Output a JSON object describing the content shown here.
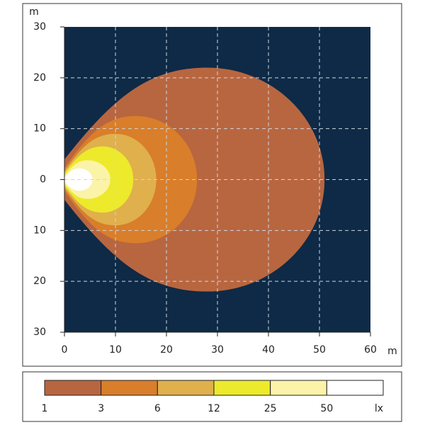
{
  "chart_data": {
    "type": "contour",
    "x_unit": "m",
    "y_unit": "m",
    "level_unit": "lx",
    "xlim": [
      0,
      60
    ],
    "xticks": [
      0,
      10,
      20,
      30,
      40,
      50,
      60
    ],
    "ylim": [
      -30,
      30
    ],
    "yticks": [
      {
        "value": 30,
        "label": "30"
      },
      {
        "value": 20,
        "label": "20"
      },
      {
        "value": 10,
        "label": "10"
      },
      0,
      {
        "value": -10,
        "label": "10"
      },
      {
        "value": -20,
        "label": "20"
      },
      {
        "value": -30,
        "label": "30"
      }
    ],
    "grid": true,
    "background": "#0e2a46",
    "series": [
      {
        "name": "1",
        "color": "#b86640",
        "reach": 51,
        "half_width": 22,
        "widest_at": 28
      },
      {
        "name": "3",
        "color": "#d97e2a",
        "reach": 26,
        "half_width": 12.5,
        "widest_at": 14
      },
      {
        "name": "6",
        "color": "#dfb04c",
        "reach": 18,
        "half_width": 9,
        "widest_at": 10
      },
      {
        "name": "12",
        "color": "#ecea2a",
        "reach": 13.5,
        "half_width": 6.5,
        "widest_at": 7.5
      },
      {
        "name": "25",
        "color": "#fbf3a8",
        "reach": 9,
        "half_width": 3.8,
        "widest_at": 4.5
      },
      {
        "name": "50",
        "color": "#ffffff",
        "reach": 5.5,
        "half_width": 2.2,
        "widest_at": 3
      }
    ]
  }
}
